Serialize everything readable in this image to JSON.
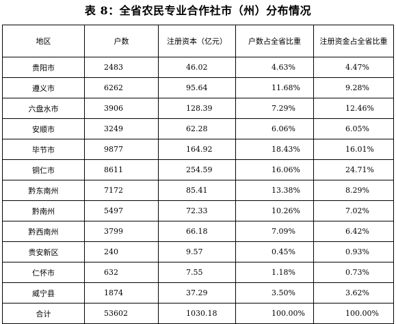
{
  "title": "表 8：全省农民专业合作社市（州）分布情况",
  "table": {
    "headers": [
      "地区",
      "户数",
      "注册资本（亿元）",
      "户数占全省比重",
      "注册资金占全省比重"
    ],
    "rows": [
      {
        "region": "贵阳市",
        "households": "2483",
        "capital": "46.02",
        "hh_share": "4.63%",
        "cap_share": "4.47%"
      },
      {
        "region": "遵义市",
        "households": "6262",
        "capital": "95.64",
        "hh_share": "11.68%",
        "cap_share": "9.28%"
      },
      {
        "region": "六盘水市",
        "households": "3906",
        "capital": "128.39",
        "hh_share": "7.29%",
        "cap_share": "12.46%"
      },
      {
        "region": "安顺市",
        "households": "3249",
        "capital": "62.28",
        "hh_share": "6.06%",
        "cap_share": "6.05%"
      },
      {
        "region": "毕节市",
        "households": "9877",
        "capital": "164.92",
        "hh_share": "18.43%",
        "cap_share": "16.01%"
      },
      {
        "region": "铜仁市",
        "households": "8611",
        "capital": "254.59",
        "hh_share": "16.06%",
        "cap_share": "24.71%"
      },
      {
        "region": "黔东南州",
        "households": "7172",
        "capital": "85.41",
        "hh_share": "13.38%",
        "cap_share": "8.29%"
      },
      {
        "region": "黔南州",
        "households": "5497",
        "capital": "72.33",
        "hh_share": "10.26%",
        "cap_share": "7.02%"
      },
      {
        "region": "黔西南州",
        "households": "3799",
        "capital": "66.18",
        "hh_share": "7.09%",
        "cap_share": "6.42%"
      },
      {
        "region": "贵安新区",
        "households": "240",
        "capital": "9.57",
        "hh_share": "0.45%",
        "cap_share": "0.93%"
      },
      {
        "region": "仁怀市",
        "households": "632",
        "capital": "7.55",
        "hh_share": "1.18%",
        "cap_share": "0.73%"
      },
      {
        "region": "威宁县",
        "households": "1874",
        "capital": "37.29",
        "hh_share": "3.50%",
        "cap_share": "3.62%"
      },
      {
        "region": "合计",
        "households": "53602",
        "capital": "1030.18",
        "hh_share": "100.00%",
        "cap_share": "100.00%"
      }
    ]
  }
}
